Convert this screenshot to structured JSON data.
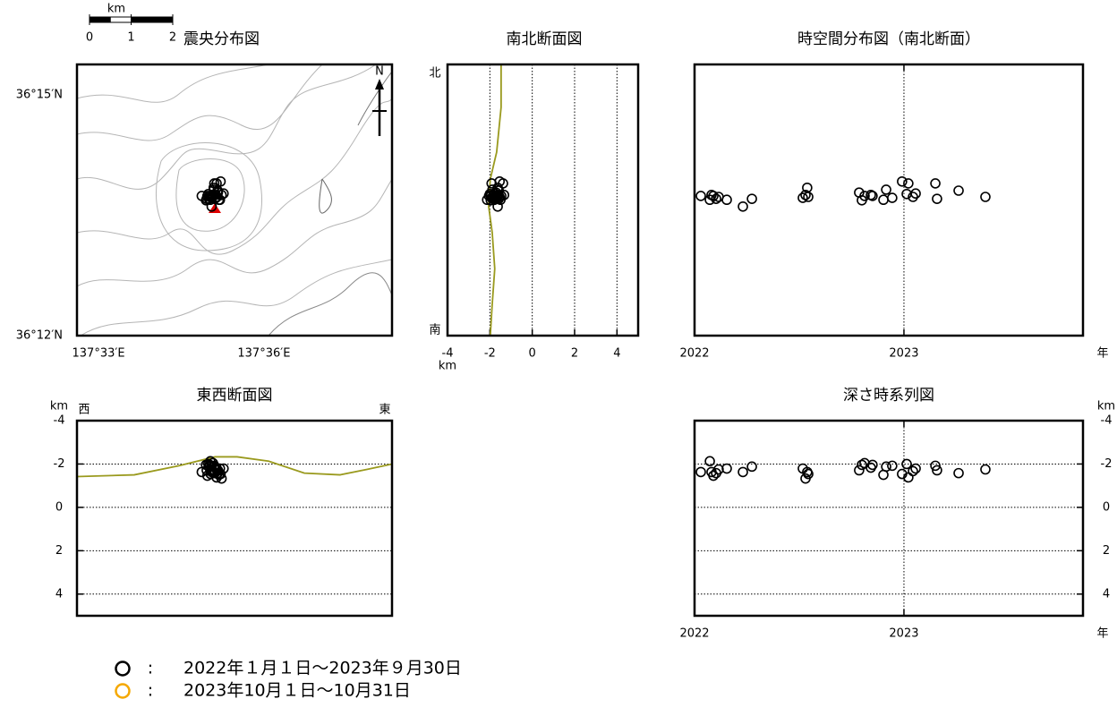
{
  "chart_data": [
    {
      "type": "scatter",
      "title": "震央分布図",
      "xlim": [
        137.5435,
        137.6387
      ],
      "ylim": [
        36.2,
        36.2563
      ],
      "xticks": [
        {
          "value": 137.55,
          "label": "137°33′E"
        },
        {
          "value": 137.6,
          "label": "137°36′E"
        }
      ],
      "yticks": [
        {
          "value": 36.25,
          "label": "36°15′N"
        },
        {
          "value": 36.2,
          "label": "36°12′N"
        }
      ],
      "north_label": "N",
      "scale_bar": {
        "unit": "km",
        "ticks": [
          0,
          1,
          2
        ]
      },
      "series": [
        {
          "color": "#000000",
          "x": [
            137.5812,
            137.5838,
            137.5845,
            137.5829,
            137.5851,
            137.5858,
            137.5867,
            137.5842,
            137.5834,
            137.5855,
            137.5872,
            137.5848,
            137.5839,
            137.5861,
            137.5825,
            137.5846,
            137.5853,
            137.5836,
            137.5864,
            137.5849,
            137.5841,
            137.5869,
            137.5832,
            137.5857,
            137.5844,
            137.5878,
            137.585,
            137.5827,
            137.586,
            137.5843
          ],
          "values": [
            36.229,
            36.2282,
            36.2292,
            36.229,
            36.2284,
            36.2288,
            36.2282,
            36.2268,
            36.2284,
            36.2286,
            36.2292,
            36.2307,
            36.2288,
            36.2297,
            36.2281,
            36.229,
            36.2292,
            36.229,
            36.2282,
            36.2303,
            36.2286,
            36.232,
            36.2294,
            36.2316,
            36.2288,
            36.2295,
            36.2316,
            36.2284,
            36.2301,
            36.2288
          ]
        }
      ]
    },
    {
      "type": "scatter",
      "title": "南北断面図",
      "xlim": [
        -4,
        5
      ],
      "ylim": [
        36.2,
        36.2563
      ],
      "xticks": [
        -4,
        -2,
        0,
        2,
        4
      ],
      "grid": "x",
      "x_unit": "km",
      "north_label": "北",
      "south_label": "南",
      "topography": {
        "color": "#9a9a1e",
        "x": [
          -1.47,
          -1.47,
          -1.68,
          -1.98,
          -2.06,
          -1.89,
          -1.77,
          -1.89,
          -1.98
        ],
        "values": [
          36.2563,
          36.2474,
          36.2381,
          36.2325,
          36.2269,
          36.2214,
          36.2139,
          36.2065,
          36.2
        ]
      },
      "series": [
        {
          "color": "#000000",
          "x": [
            -1.63,
            -2.13,
            -1.63,
            -1.46,
            -1.58,
            -1.75,
            -1.79,
            -1.63,
            -1.88,
            -1.79,
            -1.33,
            -1.63,
            -1.54,
            -1.71,
            -1.96,
            -2.04,
            -1.83,
            -1.96,
            -1.5,
            -1.88,
            -1.92,
            -1.54,
            -2.0,
            -1.38,
            -1.67,
            -1.79,
            -1.92,
            -1.71,
            -1.58,
            -1.75
          ],
          "values": [
            36.229,
            36.2282,
            36.2292,
            36.229,
            36.2284,
            36.2288,
            36.2282,
            36.2268,
            36.2284,
            36.2286,
            36.2292,
            36.2307,
            36.2288,
            36.2297,
            36.2281,
            36.229,
            36.2292,
            36.229,
            36.2282,
            36.2303,
            36.2286,
            36.232,
            36.2294,
            36.2316,
            36.2288,
            36.2295,
            36.2316,
            36.2284,
            36.2301,
            36.2288
          ]
        }
      ]
    },
    {
      "type": "scatter",
      "title": "時空間分布図（南北断面）",
      "xlim": [
        2022,
        2023.855
      ],
      "ylim": [
        36.2,
        36.2563
      ],
      "xticks": [
        2022,
        2023
      ],
      "grid": "x",
      "x_unit": "年",
      "series": [
        {
          "color": "#000000",
          "x": [
            2022.03,
            2022.073,
            2022.081,
            2022.09,
            2022.103,
            2022.115,
            2022.154,
            2022.231,
            2022.274,
            2022.517,
            2022.53,
            2022.538,
            2022.543,
            2022.786,
            2022.799,
            2022.812,
            2022.842,
            2022.85,
            2022.902,
            2022.915,
            2022.944,
            2022.991,
            2023.013,
            2023.021,
            2023.043,
            2023.056,
            2023.15,
            2023.158,
            2023.261,
            2023.389
          ],
          "values": [
            36.229,
            36.2282,
            36.2292,
            36.229,
            36.2284,
            36.2288,
            36.2282,
            36.2268,
            36.2284,
            36.2286,
            36.2292,
            36.2307,
            36.2288,
            36.2297,
            36.2281,
            36.229,
            36.2292,
            36.229,
            36.2282,
            36.2303,
            36.2286,
            36.232,
            36.2294,
            36.2316,
            36.2288,
            36.2295,
            36.2316,
            36.2284,
            36.2301,
            36.2288
          ]
        }
      ]
    },
    {
      "type": "scatter",
      "title": "東西断面図",
      "xlim": [
        137.5435,
        137.6387
      ],
      "ylim": [
        5,
        -4
      ],
      "yticks": [
        -4,
        -2,
        0,
        2,
        4
      ],
      "grid": "y",
      "y_unit": "km",
      "west_label": "西",
      "east_label": "東",
      "ytick_side": "left",
      "topography": {
        "color": "#9a9a1e",
        "x": [
          137.5435,
          137.5608,
          137.5743,
          137.5852,
          137.5919,
          137.6014,
          137.6122,
          137.623,
          137.6311,
          137.6387
        ],
        "values": [
          -1.42,
          -1.5,
          -1.92,
          -2.33,
          -2.33,
          -2.13,
          -1.58,
          -1.5,
          -1.75,
          -2.0
        ]
      },
      "series": [
        {
          "color": "#000000",
          "x": [
            137.5812,
            137.5838,
            137.5845,
            137.5829,
            137.5851,
            137.5858,
            137.5867,
            137.5842,
            137.5834,
            137.5855,
            137.5872,
            137.5848,
            137.5839,
            137.5861,
            137.5825,
            137.5846,
            137.5853,
            137.5836,
            137.5864,
            137.5849,
            137.5841,
            137.5869,
            137.5832,
            137.5857,
            137.5844,
            137.5878,
            137.585,
            137.5827,
            137.586,
            137.5843
          ],
          "values": [
            -1.63,
            -2.13,
            -1.63,
            -1.46,
            -1.58,
            -1.75,
            -1.79,
            -1.63,
            -1.88,
            -1.79,
            -1.33,
            -1.63,
            -1.54,
            -1.71,
            -1.96,
            -2.04,
            -1.83,
            -1.96,
            -1.5,
            -1.88,
            -1.92,
            -1.54,
            -2.0,
            -1.38,
            -1.67,
            -1.79,
            -1.92,
            -1.71,
            -1.58,
            -1.75
          ]
        }
      ]
    },
    {
      "type": "scatter",
      "title": "深さ時系列図",
      "xlim": [
        2022,
        2023.855
      ],
      "ylim": [
        5,
        -4
      ],
      "xticks": [
        2022,
        2023
      ],
      "yticks": [
        -4,
        -2,
        0,
        2,
        4
      ],
      "grid": "xy",
      "x_unit": "年",
      "y_unit": "km",
      "ytick_side": "right",
      "series": [
        {
          "color": "#000000",
          "x": [
            2022.03,
            2022.073,
            2022.081,
            2022.09,
            2022.103,
            2022.115,
            2022.154,
            2022.231,
            2022.274,
            2022.517,
            2022.53,
            2022.538,
            2022.543,
            2022.786,
            2022.799,
            2022.812,
            2022.842,
            2022.85,
            2022.902,
            2022.915,
            2022.944,
            2022.991,
            2023.013,
            2023.021,
            2023.043,
            2023.056,
            2023.15,
            2023.158,
            2023.261,
            2023.389
          ],
          "values": [
            -1.63,
            -2.13,
            -1.63,
            -1.46,
            -1.58,
            -1.75,
            -1.79,
            -1.63,
            -1.88,
            -1.79,
            -1.33,
            -1.63,
            -1.54,
            -1.71,
            -1.96,
            -2.04,
            -1.83,
            -1.96,
            -1.5,
            -1.88,
            -1.92,
            -1.54,
            -2.0,
            -1.38,
            -1.67,
            -1.79,
            -1.92,
            -1.71,
            -1.58,
            -1.75
          ]
        }
      ]
    }
  ],
  "legend": {
    "separator": ":",
    "items": [
      {
        "color": "#000000",
        "label": "2022年１月１日～2023年９月30日"
      },
      {
        "color": "#f5a800",
        "label": "2023年10月１日～10月31日"
      }
    ]
  }
}
